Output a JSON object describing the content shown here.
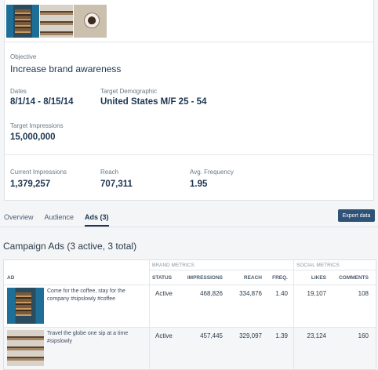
{
  "campaign": {
    "thumbnails": [
      "door-image",
      "shelf-image",
      "coffee-cup-image"
    ],
    "objective_label": "Objective",
    "objective_value": "Increase brand awareness",
    "dates_label": "Dates",
    "dates_value": "8/1/14 - 8/15/14",
    "target_demo_label": "Target Demographic",
    "target_demo_value": "United States M/F 25 - 54",
    "target_impressions_label": "Target Impressions",
    "target_impressions_value": "15,000,000",
    "current_impressions_label": "Current Impressions",
    "current_impressions_value": "1,379,257",
    "reach_label": "Reach",
    "reach_value": "707,311",
    "avg_frequency_label": "Avg. Frequency",
    "avg_frequency_value": "1.95"
  },
  "tabs": [
    {
      "label": "Overview",
      "active": false
    },
    {
      "label": "Audience",
      "active": false
    },
    {
      "label": "Ads (3)",
      "active": true
    }
  ],
  "export_label": "Export data",
  "section_title": "Campaign Ads (3 active, 3 total)",
  "table": {
    "group_brand": "BRAND METRICS",
    "group_social": "SOCIAL METRICS",
    "headers": {
      "ad": "AD",
      "status": "STATUS",
      "impressions": "IMPRESSIONS",
      "reach": "REACH",
      "freq": "FREQ.",
      "likes": "LIKES",
      "comments": "COMMENTS"
    },
    "rows": [
      {
        "text": "Come for the coffee, stay for the company #sipslowly #coffee",
        "status": "Active",
        "impressions": "468,826",
        "reach": "334,876",
        "freq": "1.40",
        "likes": "19,107",
        "comments": "108"
      },
      {
        "text": "Travel the globe one sip at a time #sipslowly",
        "status": "Active",
        "impressions": "457,445",
        "reach": "329,097",
        "freq": "1.39",
        "likes": "23,124",
        "comments": "160"
      }
    ]
  },
  "colors": {
    "accent": "#1d3551",
    "button": "#2f5376",
    "background": "#f4f5f7"
  }
}
